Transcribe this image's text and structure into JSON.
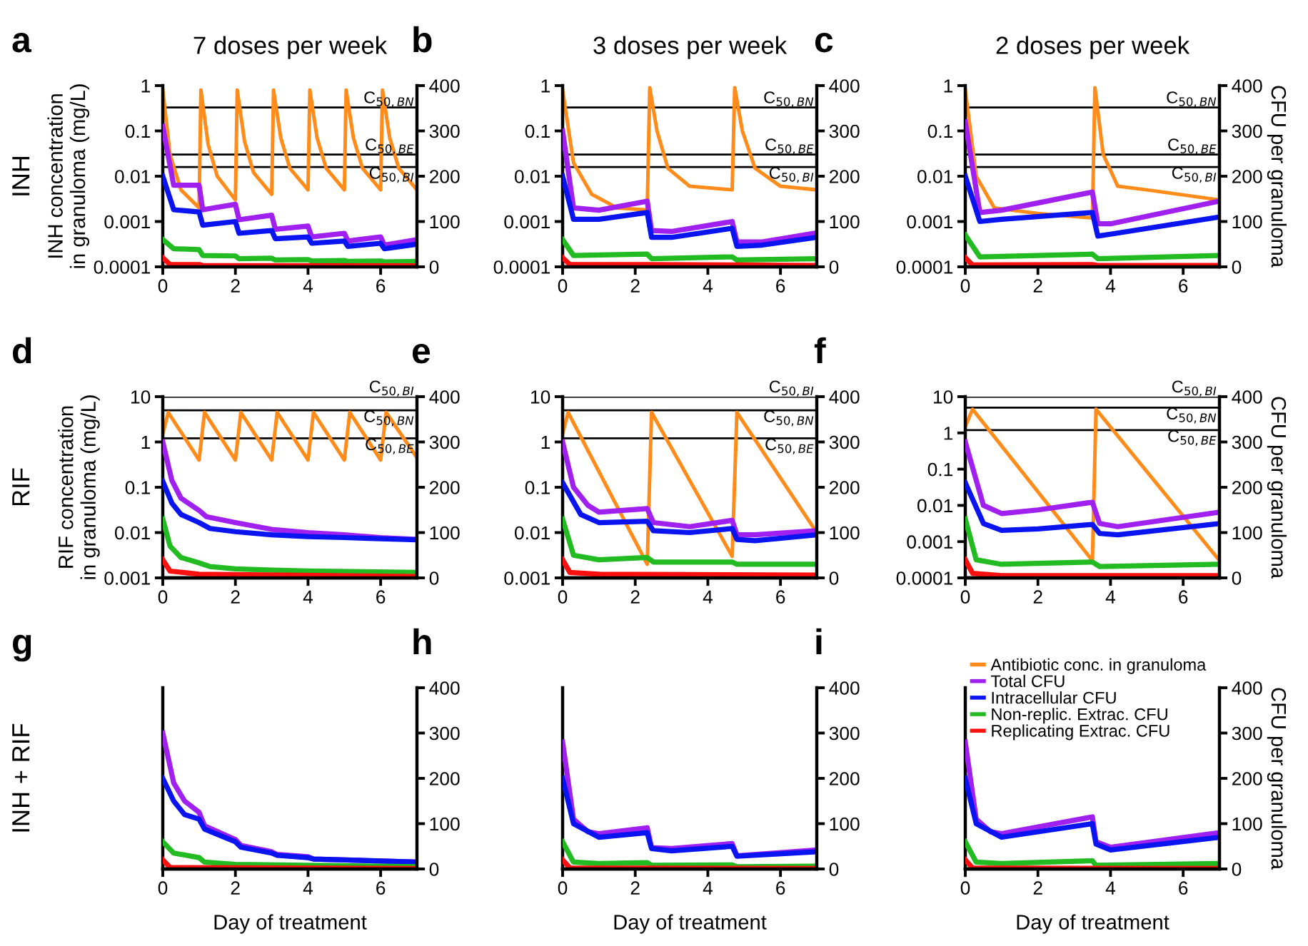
{
  "chart_data": [
    {
      "type": "line",
      "title": "7 doses per week",
      "annotations": [
        "a",
        "INH"
      ],
      "ylabel": "INH concentration\nin granuloma (mg/L)",
      "log": "y",
      "ylim": [
        0.0001,
        1
      ],
      "yticks": [
        0.0001,
        0.001,
        0.01,
        0.1,
        1
      ],
      "y2lim": [
        0,
        400
      ],
      "y2ticks": [
        0,
        100,
        200,
        300,
        400
      ],
      "xlim": [
        0,
        7
      ],
      "xticks": [
        0,
        2,
        4,
        6
      ],
      "ref_lines": [
        {
          "axis": "y",
          "value": 0.33,
          "label": "C$_{50,BN}$"
        },
        {
          "axis": "y",
          "value": 0.03,
          "label": "C$_{50,BE}$"
        },
        {
          "axis": "y",
          "value": 0.016,
          "label": "C$_{50,BI}$"
        }
      ],
      "series": [
        {
          "color": "#ff8c1a",
          "x": [
            0,
            0.2,
            0.5,
            1,
            1.05,
            1.25,
            1.5,
            2,
            2.05,
            2.25,
            2.5,
            3,
            3.05,
            3.25,
            3.5,
            4,
            4.05,
            4.25,
            4.5,
            5,
            5.05,
            5.25,
            5.5,
            6,
            6.05,
            6.25,
            6.5,
            7
          ],
          "values": [
            0.8,
            0.03,
            0.005,
            0.002,
            0.8,
            0.05,
            0.01,
            0.003,
            0.8,
            0.06,
            0.012,
            0.004,
            0.8,
            0.07,
            0.015,
            0.005,
            0.8,
            0.07,
            0.015,
            0.005,
            0.8,
            0.07,
            0.015,
            0.005,
            0.8,
            0.07,
            0.015,
            0.005
          ]
        },
        {
          "color": "#a020f0",
          "axis": "y2",
          "x": [
            0,
            0.3,
            1,
            1.1,
            2,
            2.1,
            3,
            3.1,
            4,
            4.1,
            5,
            5.1,
            6,
            6.1,
            7
          ],
          "values": [
            310,
            180,
            180,
            126,
            138,
            104,
            114,
            83,
            90,
            66,
            74,
            57,
            66,
            48,
            60
          ]
        },
        {
          "color": "#0a14f0",
          "axis": "y2",
          "x": [
            0,
            0.3,
            1,
            1.1,
            2,
            2.1,
            3,
            3.1,
            4,
            4.1,
            5,
            5.1,
            6,
            6.1,
            7
          ],
          "values": [
            200,
            126,
            121,
            92,
            100,
            74,
            80,
            62,
            66,
            52,
            57,
            45,
            52,
            40,
            50
          ]
        },
        {
          "color": "#22bb22",
          "axis": "y2",
          "x": [
            0,
            0.3,
            1,
            1.1,
            2,
            2.1,
            3,
            3.1,
            4,
            4.1,
            5,
            5.1,
            6,
            6.1,
            7
          ],
          "values": [
            60,
            40,
            38,
            25,
            24,
            18,
            19,
            15,
            16,
            13,
            14,
            12,
            13,
            11,
            12
          ]
        },
        {
          "color": "#ff1010",
          "axis": "y2",
          "x": [
            0,
            0.2,
            1,
            1.1,
            7
          ],
          "values": [
            20,
            5,
            5,
            3,
            2
          ]
        }
      ]
    },
    {
      "type": "line",
      "title": "3 doses per week",
      "annotations": [
        "b"
      ],
      "log": "y",
      "ylim": [
        0.0001,
        1
      ],
      "yticks": [
        0.0001,
        0.001,
        0.01,
        0.1,
        1
      ],
      "y2lim": [
        0,
        400
      ],
      "y2ticks": [
        0,
        100,
        200,
        300,
        400
      ],
      "xlim": [
        0,
        7
      ],
      "xticks": [
        0,
        2,
        4,
        6
      ],
      "ref_lines": [
        {
          "axis": "y",
          "value": 0.33,
          "label": "C$_{50,BN}$"
        },
        {
          "axis": "y",
          "value": 0.03,
          "label": "C$_{50,BE}$"
        },
        {
          "axis": "y",
          "value": 0.016,
          "label": "C$_{50,BI}$"
        }
      ],
      "series": [
        {
          "color": "#ff8c1a",
          "x": [
            0,
            0.3,
            0.8,
            1.5,
            2.33,
            2.4,
            2.6,
            2.9,
            3.5,
            4.67,
            4.74,
            4.95,
            5.3,
            6,
            7
          ],
          "values": [
            0.8,
            0.02,
            0.004,
            0.002,
            0.0018,
            0.9,
            0.1,
            0.015,
            0.006,
            0.005,
            0.9,
            0.1,
            0.015,
            0.006,
            0.005
          ]
        },
        {
          "color": "#a020f0",
          "axis": "y2",
          "x": [
            0,
            0.3,
            1,
            2.33,
            2.45,
            3,
            4.67,
            4.8,
            5.5,
            7
          ],
          "values": [
            300,
            130,
            125,
            145,
            80,
            78,
            100,
            55,
            55,
            75
          ]
        },
        {
          "color": "#0a14f0",
          "axis": "y2",
          "x": [
            0,
            0.3,
            1,
            2.33,
            2.45,
            3,
            4.67,
            4.8,
            5.5,
            7
          ],
          "values": [
            200,
            105,
            105,
            120,
            65,
            65,
            85,
            45,
            48,
            65
          ]
        },
        {
          "color": "#22bb22",
          "axis": "y2",
          "x": [
            0,
            0.3,
            2.33,
            2.45,
            4.67,
            4.8,
            7
          ],
          "values": [
            60,
            25,
            28,
            18,
            22,
            15,
            18
          ]
        },
        {
          "color": "#ff1010",
          "axis": "y2",
          "x": [
            0,
            0.2,
            2.33,
            4.67,
            7
          ],
          "values": [
            20,
            5,
            5,
            4,
            3
          ]
        }
      ]
    },
    {
      "type": "line",
      "title": "2 doses per week",
      "annotations": [
        "c"
      ],
      "y2label": "CFU per granuloma",
      "log": "y",
      "ylim": [
        0.0001,
        1
      ],
      "yticks": [
        0.0001,
        0.001,
        0.01,
        0.1,
        1
      ],
      "y2lim": [
        0,
        400
      ],
      "y2ticks": [
        0,
        100,
        200,
        300,
        400
      ],
      "xlim": [
        0,
        7
      ],
      "xticks": [
        0,
        2,
        4,
        6
      ],
      "ref_lines": [
        {
          "axis": "y",
          "value": 0.33,
          "label": "C$_{50,BN}$"
        },
        {
          "axis": "y",
          "value": 0.03,
          "label": "C$_{50,BE}$"
        },
        {
          "axis": "y",
          "value": 0.016,
          "label": "C$_{50,BI}$"
        }
      ],
      "series": [
        {
          "color": "#ff8c1a",
          "x": [
            0,
            0.3,
            0.8,
            2,
            3.5,
            3.57,
            3.8,
            4.2,
            5,
            7
          ],
          "values": [
            0.8,
            0.01,
            0.002,
            0.0015,
            0.0012,
            0.9,
            0.03,
            0.006,
            0.005,
            0.003
          ]
        },
        {
          "color": "#a020f0",
          "axis": "y2",
          "x": [
            0,
            0.4,
            1,
            3.5,
            3.65,
            4,
            7
          ],
          "values": [
            320,
            120,
            125,
            165,
            95,
            95,
            145
          ]
        },
        {
          "color": "#0a14f0",
          "axis": "y2",
          "x": [
            0,
            0.4,
            1,
            3.5,
            3.65,
            4,
            7
          ],
          "values": [
            200,
            100,
            105,
            120,
            68,
            72,
            110
          ]
        },
        {
          "color": "#22bb22",
          "axis": "y2",
          "x": [
            0,
            0.4,
            3.5,
            3.65,
            7
          ],
          "values": [
            70,
            22,
            28,
            18,
            25
          ]
        },
        {
          "color": "#ff1010",
          "axis": "y2",
          "x": [
            0,
            0.2,
            3.5,
            3.65,
            7
          ],
          "values": [
            20,
            4,
            5,
            3,
            3
          ]
        }
      ]
    },
    {
      "type": "line",
      "annotations": [
        "d",
        "RIF"
      ],
      "ylabel": "RIF concentration\nin granuloma (mg/L)",
      "log": "y",
      "ylim": [
        0.001,
        10
      ],
      "yticks": [
        0.001,
        0.01,
        0.1,
        1,
        10
      ],
      "y2lim": [
        0,
        400
      ],
      "y2ticks": [
        0,
        100,
        200,
        300,
        400
      ],
      "xlim": [
        0,
        7
      ],
      "xticks": [
        0,
        2,
        4,
        6
      ],
      "ref_lines": [
        {
          "axis": "y",
          "value": 10,
          "label": "C$_{50,BI}$"
        },
        {
          "axis": "y",
          "value": 5,
          "label": "C$_{50,BN}$"
        },
        {
          "axis": "y",
          "value": 1.2,
          "label": "C$_{50,BE}$"
        }
      ],
      "series": [
        {
          "color": "#ff8c1a",
          "x": [
            0,
            0.15,
            1,
            1.15,
            2,
            2.15,
            3,
            3.15,
            4,
            4.15,
            5,
            5.15,
            6,
            6.15,
            7
          ],
          "values": [
            1.5,
            4.5,
            0.4,
            4.5,
            0.4,
            4.5,
            0.4,
            4.5,
            0.4,
            4.5,
            0.4,
            4.5,
            0.4,
            4.5,
            0.45
          ]
        },
        {
          "color": "#a020f0",
          "axis": "y2",
          "x": [
            0,
            0.25,
            0.5,
            1,
            1.2,
            2,
            3,
            4,
            5,
            6,
            7
          ],
          "values": [
            300,
            215,
            176,
            149,
            135,
            122,
            107,
            100,
            95,
            89,
            85
          ]
        },
        {
          "color": "#0a14f0",
          "axis": "y2",
          "x": [
            0,
            0.25,
            0.5,
            1,
            1.3,
            2,
            3,
            4,
            5,
            7
          ],
          "values": [
            213,
            165,
            140,
            122,
            109,
            102,
            95,
            91,
            89,
            84
          ]
        },
        {
          "color": "#22bb22",
          "axis": "y2",
          "x": [
            0,
            0.2,
            0.5,
            1,
            1.3,
            2,
            3,
            4,
            7
          ],
          "values": [
            130,
            70,
            45,
            33,
            25,
            20,
            17,
            15,
            12
          ]
        },
        {
          "color": "#ff1010",
          "axis": "y2",
          "x": [
            0,
            0.2,
            1,
            7
          ],
          "values": [
            40,
            15,
            8,
            3
          ]
        }
      ]
    },
    {
      "type": "line",
      "annotations": [
        "e"
      ],
      "log": "y",
      "ylim": [
        0.001,
        10
      ],
      "yticks": [
        0.001,
        0.01,
        0.1,
        1,
        10
      ],
      "y2lim": [
        0,
        400
      ],
      "y2ticks": [
        0,
        100,
        200,
        300,
        400
      ],
      "xlim": [
        0,
        7
      ],
      "xticks": [
        0,
        2,
        4,
        6
      ],
      "ref_lines": [
        {
          "axis": "y",
          "value": 10,
          "label": "C$_{50,BI}$"
        },
        {
          "axis": "y",
          "value": 5,
          "label": "C$_{50,BN}$"
        },
        {
          "axis": "y",
          "value": 1.2,
          "label": "C$_{50,BE}$"
        }
      ],
      "series": [
        {
          "color": "#ff8c1a",
          "x": [
            0,
            0.15,
            2.33,
            2.45,
            4.67,
            4.8,
            7
          ],
          "values": [
            1.5,
            4.5,
            0.002,
            4.5,
            0.003,
            4.5,
            0.01
          ]
        },
        {
          "color": "#a020f0",
          "axis": "y2",
          "x": [
            0,
            0.3,
            0.7,
            1,
            2.33,
            2.5,
            3.5,
            4.67,
            4.8,
            5.3,
            7
          ],
          "values": [
            300,
            200,
            160,
            145,
            153,
            122,
            113,
            127,
            95,
            95,
            104
          ]
        },
        {
          "color": "#0a14f0",
          "axis": "y2",
          "x": [
            0,
            0.5,
            1,
            2.33,
            2.5,
            3.5,
            4.67,
            4.8,
            5.3,
            7
          ],
          "values": [
            210,
            140,
            122,
            125,
            104,
            100,
            109,
            85,
            82,
            95
          ]
        },
        {
          "color": "#22bb22",
          "axis": "y2",
          "x": [
            0,
            0.3,
            1,
            2.33,
            2.5,
            4.67,
            4.8,
            7
          ],
          "values": [
            130,
            50,
            40,
            45,
            35,
            35,
            30,
            30
          ]
        },
        {
          "color": "#ff1010",
          "axis": "y2",
          "x": [
            0,
            0.2,
            1,
            7
          ],
          "values": [
            40,
            12,
            8,
            6
          ]
        }
      ]
    },
    {
      "type": "line",
      "annotations": [
        "f"
      ],
      "y2label": "CFU per granuloma",
      "log": "y",
      "ylim": [
        0.0001,
        10
      ],
      "yticks": [
        0.0001,
        0.001,
        0.01,
        0.1,
        1,
        10
      ],
      "y2lim": [
        0,
        400
      ],
      "y2ticks": [
        0,
        100,
        200,
        300,
        400
      ],
      "xlim": [
        0,
        7
      ],
      "xticks": [
        0,
        2,
        4,
        6
      ],
      "ref_lines": [
        {
          "axis": "y",
          "value": 10,
          "label": "C$_{50,BI}$"
        },
        {
          "axis": "y",
          "value": 5,
          "label": "C$_{50,BN}$"
        },
        {
          "axis": "y",
          "value": 1.2,
          "label": "C$_{50,BE}$"
        }
      ],
      "series": [
        {
          "color": "#ff8c1a",
          "x": [
            0,
            0.2,
            3.5,
            3.6,
            7
          ],
          "values": [
            1.5,
            4.5,
            0.0003,
            4.5,
            0.0003
          ]
        },
        {
          "color": "#a020f0",
          "axis": "y2",
          "x": [
            0,
            0.5,
            1,
            2,
            3.5,
            3.7,
            4.2,
            7
          ],
          "values": [
            300,
            160,
            142,
            150,
            167,
            120,
            113,
            145
          ]
        },
        {
          "color": "#0a14f0",
          "axis": "y2",
          "x": [
            0,
            0.5,
            1,
            2,
            3.5,
            3.7,
            4.2,
            7
          ],
          "values": [
            210,
            120,
            105,
            108,
            118,
            98,
            95,
            120
          ]
        },
        {
          "color": "#22bb22",
          "axis": "y2",
          "x": [
            0,
            0.3,
            1,
            3.5,
            3.7,
            7
          ],
          "values": [
            130,
            40,
            30,
            35,
            25,
            30
          ]
        },
        {
          "color": "#ff1010",
          "axis": "y2",
          "x": [
            0,
            0.2,
            1,
            7
          ],
          "values": [
            40,
            10,
            5,
            5
          ]
        }
      ]
    },
    {
      "type": "line",
      "annotations": [
        "g",
        "INH + RIF"
      ],
      "xlabel": "Day of treatment",
      "y2lim": [
        0,
        400
      ],
      "y2ticks": [
        0,
        100,
        200,
        300,
        400
      ],
      "xlim": [
        0,
        7
      ],
      "xticks": [
        0,
        2,
        4,
        6
      ],
      "series": [
        {
          "color": "#a020f0",
          "axis": "y2",
          "x": [
            0,
            0.3,
            0.6,
            1,
            1.15,
            2,
            2.15,
            3,
            3.15,
            4,
            4.15,
            7
          ],
          "values": [
            300,
            190,
            150,
            125,
            95,
            65,
            52,
            38,
            32,
            27,
            22,
            15
          ]
        },
        {
          "color": "#0a14f0",
          "axis": "y2",
          "x": [
            0,
            0.3,
            0.6,
            1,
            1.15,
            2,
            2.15,
            3,
            3.15,
            4,
            4.15,
            7
          ],
          "values": [
            200,
            150,
            120,
            110,
            88,
            60,
            48,
            35,
            30,
            25,
            22,
            15
          ]
        },
        {
          "color": "#22bb22",
          "axis": "y2",
          "x": [
            0,
            0.3,
            1,
            1.15,
            2,
            7
          ],
          "values": [
            60,
            35,
            25,
            15,
            10,
            5
          ]
        },
        {
          "color": "#ff1010",
          "axis": "y2",
          "x": [
            0,
            0.2,
            7
          ],
          "values": [
            20,
            3,
            1
          ]
        }
      ]
    },
    {
      "type": "line",
      "annotations": [
        "h"
      ],
      "xlabel": "Day of treatment",
      "y2lim": [
        0,
        400
      ],
      "y2ticks": [
        0,
        100,
        200,
        300,
        400
      ],
      "xlim": [
        0,
        7
      ],
      "xticks": [
        0,
        2,
        4,
        6
      ],
      "series": [
        {
          "color": "#a020f0",
          "axis": "y2",
          "x": [
            0,
            0.3,
            0.7,
            1,
            2.33,
            2.45,
            3,
            4.67,
            4.8,
            7
          ],
          "values": [
            280,
            110,
            82,
            78,
            91,
            47,
            45,
            56,
            29,
            42
          ]
        },
        {
          "color": "#0a14f0",
          "axis": "y2",
          "x": [
            0,
            0.3,
            1,
            2.33,
            2.45,
            3,
            4.67,
            4.8,
            7
          ],
          "values": [
            200,
            100,
            70,
            80,
            45,
            40,
            50,
            28,
            38
          ]
        },
        {
          "color": "#22bb22",
          "axis": "y2",
          "x": [
            0,
            0.3,
            1,
            2.33,
            2.45,
            4.67,
            4.8,
            7
          ],
          "values": [
            60,
            15,
            12,
            14,
            8,
            9,
            5,
            6
          ]
        },
        {
          "color": "#ff1010",
          "axis": "y2",
          "x": [
            0,
            0.2,
            7
          ],
          "values": [
            20,
            2,
            1
          ]
        }
      ]
    },
    {
      "type": "line",
      "annotations": [
        "i"
      ],
      "xlabel": "Day of treatment",
      "y2label": "CFU per granuloma",
      "legend": "top",
      "y2lim": [
        0,
        400
      ],
      "y2ticks": [
        0,
        100,
        200,
        300,
        400
      ],
      "xlim": [
        0,
        7
      ],
      "xticks": [
        0,
        2,
        4,
        6
      ],
      "series": [
        {
          "name": "Antibiotic conc. in granuloma",
          "color": "#ff8c1a",
          "axis": "y2"
        },
        {
          "name": "Total CFU",
          "color": "#a020f0",
          "axis": "y2",
          "x": [
            0,
            0.3,
            0.7,
            1,
            3.5,
            3.6,
            4,
            7
          ],
          "values": [
            280,
            110,
            82,
            78,
            115,
            60,
            48,
            80
          ]
        },
        {
          "name": "Intracellular CFU",
          "color": "#0a14f0",
          "axis": "y2",
          "x": [
            0,
            0.3,
            1,
            3.5,
            3.6,
            4,
            7
          ],
          "values": [
            200,
            100,
            70,
            100,
            55,
            42,
            70
          ]
        },
        {
          "name": "Non-replic. Extrac. CFU",
          "color": "#22bb22",
          "axis": "y2",
          "x": [
            0,
            0.3,
            1,
            3.5,
            3.6,
            7
          ],
          "values": [
            60,
            15,
            12,
            18,
            8,
            12
          ]
        },
        {
          "name": "Replicating Extrac. CFU",
          "color": "#ff1010",
          "axis": "y2",
          "x": [
            0,
            0.2,
            7
          ],
          "values": [
            20,
            2,
            1
          ]
        }
      ]
    }
  ]
}
